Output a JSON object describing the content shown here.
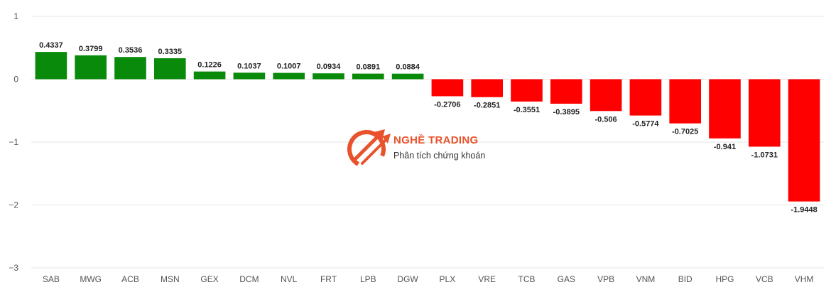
{
  "colors": {
    "positive": "#0a8a0a",
    "negative": "#ff0000",
    "brand": "#e8532c"
  },
  "watermark": {
    "title": "NGHỀ TRADING",
    "subtitle": "Phân tích chứng khoán"
  },
  "chart_data": {
    "type": "bar",
    "title": "",
    "xlabel": "",
    "ylabel": "",
    "ylim": [
      -3,
      1
    ],
    "yticks": [
      1,
      0,
      -1,
      -2,
      -3
    ],
    "ytick_labels": [
      "1",
      "0",
      "−1",
      "−2",
      "−3"
    ],
    "grid": true,
    "categories": [
      "SAB",
      "MWG",
      "ACB",
      "MSN",
      "GEX",
      "DCM",
      "NVL",
      "FRT",
      "LPB",
      "DGW",
      "PLX",
      "VRE",
      "TCB",
      "GAS",
      "VPB",
      "VNM",
      "BID",
      "HPG",
      "VCB",
      "VHM"
    ],
    "values": [
      0.4337,
      0.3799,
      0.3536,
      0.3335,
      0.1226,
      0.1037,
      0.1007,
      0.0934,
      0.0891,
      0.0884,
      -0.2706,
      -0.2851,
      -0.3551,
      -0.3895,
      -0.506,
      -0.5774,
      -0.7025,
      -0.941,
      -1.0731,
      -1.9448
    ],
    "value_labels": [
      "0.4337",
      "0.3799",
      "0.3536",
      "0.3335",
      "0.1226",
      "0.1037",
      "0.1007",
      "0.0934",
      "0.0891",
      "0.0884",
      "-0.2706",
      "-0.2851",
      "-0.3551",
      "-0.3895",
      "-0.506",
      "-0.5774",
      "-0.7025",
      "-0.941",
      "-1.0731",
      "-1.9448"
    ]
  }
}
